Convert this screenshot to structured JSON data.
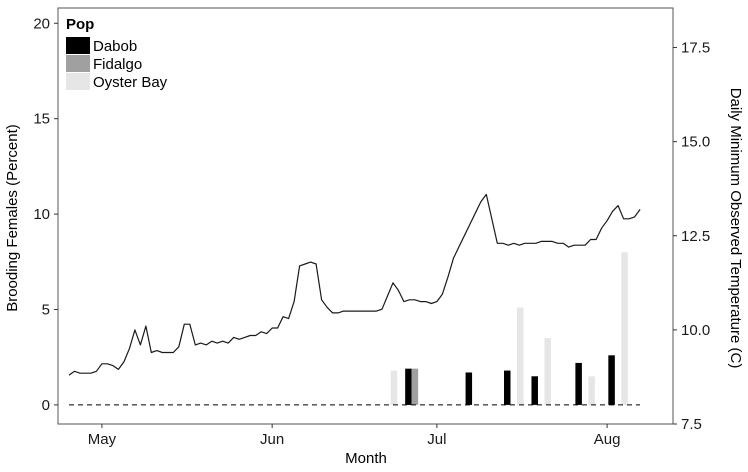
{
  "chart_data": {
    "type": "bar+line",
    "xlabel": "Month",
    "ylabel": "Brooding Females (Percent)",
    "y2label": "Daily Minimum Observed Temperature (C)",
    "x_range_days": [
      -8,
      104
    ],
    "ylim": [
      -1,
      20.8
    ],
    "y2lim": [
      7.5,
      18.55
    ],
    "yticks": [
      0,
      5,
      10,
      15,
      20
    ],
    "y2ticks": [
      "7.5",
      "10.0",
      "12.5",
      "15.0",
      "17.5"
    ],
    "xticks": [
      {
        "label": "May",
        "day": 0
      },
      {
        "label": "Jun",
        "day": 31
      },
      {
        "label": "Jul",
        "day": 61
      },
      {
        "label": "Aug",
        "day": 92
      }
    ],
    "legend": {
      "title": "Pop",
      "position": "top-left",
      "entries": [
        {
          "name": "Dabob",
          "color": "#000000"
        },
        {
          "name": "Fidalgo",
          "color": "#a0a0a0"
        },
        {
          "name": "Oyster Bay",
          "color": "#e6e6e6"
        }
      ]
    },
    "grid": false,
    "bars": [
      {
        "day": 52,
        "values": [
          0,
          0,
          1.8
        ]
      },
      {
        "day": 57,
        "values": [
          1.9,
          1.9,
          0
        ]
      },
      {
        "day": 68,
        "values": [
          1.7,
          0,
          0
        ]
      },
      {
        "day": 75,
        "values": [
          1.8,
          0,
          5.1
        ]
      },
      {
        "day": 80,
        "values": [
          1.5,
          0,
          3.5
        ]
      },
      {
        "day": 88,
        "values": [
          2.2,
          0,
          1.5
        ]
      },
      {
        "day": 94,
        "values": [
          2.6,
          0,
          8.0
        ]
      }
    ],
    "temperature": [
      [
        -6,
        8.8
      ],
      [
        -5,
        8.9
      ],
      [
        -4,
        8.85
      ],
      [
        -3,
        8.85
      ],
      [
        -2,
        8.85
      ],
      [
        -1,
        8.9
      ],
      [
        0,
        9.1
      ],
      [
        1,
        9.1
      ],
      [
        2,
        9.05
      ],
      [
        3,
        8.95
      ],
      [
        4,
        9.15
      ],
      [
        5,
        9.5
      ],
      [
        6,
        10.0
      ],
      [
        7,
        9.6
      ],
      [
        8,
        10.1
      ],
      [
        9,
        9.4
      ],
      [
        10,
        9.45
      ],
      [
        11,
        9.4
      ],
      [
        12,
        9.4
      ],
      [
        13,
        9.4
      ],
      [
        14,
        9.55
      ],
      [
        15,
        10.15
      ],
      [
        16,
        10.15
      ],
      [
        17,
        9.6
      ],
      [
        18,
        9.65
      ],
      [
        19,
        9.6
      ],
      [
        20,
        9.7
      ],
      [
        21,
        9.65
      ],
      [
        22,
        9.7
      ],
      [
        23,
        9.65
      ],
      [
        24,
        9.8
      ],
      [
        25,
        9.75
      ],
      [
        26,
        9.8
      ],
      [
        27,
        9.85
      ],
      [
        28,
        9.85
      ],
      [
        29,
        9.95
      ],
      [
        30,
        9.9
      ],
      [
        31,
        10.05
      ],
      [
        32,
        10.05
      ],
      [
        33,
        10.35
      ],
      [
        34,
        10.3
      ],
      [
        35,
        10.75
      ],
      [
        36,
        11.7
      ],
      [
        37,
        11.75
      ],
      [
        38,
        11.8
      ],
      [
        39,
        11.75
      ],
      [
        40,
        10.8
      ],
      [
        41,
        10.6
      ],
      [
        42,
        10.45
      ],
      [
        43,
        10.45
      ],
      [
        44,
        10.5
      ],
      [
        45,
        10.5
      ],
      [
        46,
        10.5
      ],
      [
        47,
        10.5
      ],
      [
        48,
        10.5
      ],
      [
        49,
        10.5
      ],
      [
        50,
        10.5
      ],
      [
        51,
        10.55
      ],
      [
        52,
        10.9
      ],
      [
        53,
        11.25
      ],
      [
        54,
        11.05
      ],
      [
        55,
        10.75
      ],
      [
        56,
        10.8
      ],
      [
        57,
        10.8
      ],
      [
        58,
        10.75
      ],
      [
        59,
        10.75
      ],
      [
        60,
        10.7
      ],
      [
        61,
        10.75
      ],
      [
        62,
        10.95
      ],
      [
        63,
        11.4
      ],
      [
        64,
        11.9
      ],
      [
        65,
        12.2
      ],
      [
        66,
        12.5
      ],
      [
        67,
        12.8
      ],
      [
        68,
        13.1
      ],
      [
        69,
        13.4
      ],
      [
        70,
        13.6
      ],
      [
        71,
        12.95
      ],
      [
        72,
        12.3
      ],
      [
        73,
        12.3
      ],
      [
        74,
        12.25
      ],
      [
        75,
        12.3
      ],
      [
        76,
        12.25
      ],
      [
        77,
        12.3
      ],
      [
        78,
        12.3
      ],
      [
        79,
        12.3
      ],
      [
        80,
        12.35
      ],
      [
        81,
        12.35
      ],
      [
        82,
        12.35
      ],
      [
        83,
        12.3
      ],
      [
        84,
        12.3
      ],
      [
        85,
        12.2
      ],
      [
        86,
        12.25
      ],
      [
        87,
        12.25
      ],
      [
        88,
        12.25
      ],
      [
        89,
        12.4
      ],
      [
        90,
        12.4
      ],
      [
        91,
        12.7
      ],
      [
        92,
        12.9
      ],
      [
        93,
        13.15
      ],
      [
        94,
        13.3
      ],
      [
        95,
        12.95
      ],
      [
        96,
        12.95
      ],
      [
        97,
        13.0
      ],
      [
        98,
        13.2
      ]
    ]
  }
}
